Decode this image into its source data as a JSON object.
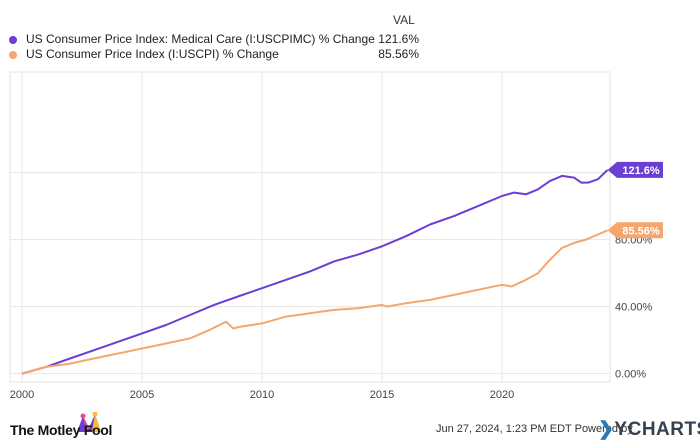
{
  "legend": {
    "header": "VAL",
    "items": [
      {
        "name": "US Consumer Price Index: Medical Care (I:USCPIMC) % Change",
        "value": "121.6%",
        "color": "#6b3fd4"
      },
      {
        "name": "US Consumer Price Index (I:USCPI) % Change",
        "value": "85.56%",
        "color": "#f5a66e"
      }
    ]
  },
  "footer": {
    "date": "Jun 27, 2024, 1:23 PM EDT Powered by",
    "brand": "YCHARTS",
    "logo_text": "The Motley Fool"
  },
  "chart_data": {
    "type": "line",
    "xlim": [
      1999.5,
      2024.5
    ],
    "ylim": [
      -5,
      180
    ],
    "x_ticks": [
      2000,
      2005,
      2010,
      2015,
      2020
    ],
    "x_tick_labels": [
      "2000",
      "2005",
      "2010",
      "2015",
      "2020"
    ],
    "y_ticks": [
      0,
      40,
      80,
      120
    ],
    "y_tick_labels": [
      "0.00%",
      "40.00%",
      "80.00%",
      "120.0%"
    ],
    "grid": true,
    "series": [
      {
        "name": "US Consumer Price Index: Medical Care (I:USCPIMC) % Change",
        "color": "#6b3fd4",
        "end_label": "121.6%",
        "x": [
          2000,
          2000.5,
          2001,
          2002,
          2003,
          2004,
          2005,
          2006,
          2007,
          2008,
          2009,
          2010,
          2011,
          2012,
          2013,
          2014,
          2015,
          2016,
          2017,
          2018,
          2019,
          2020,
          2020.5,
          2021,
          2021.5,
          2022,
          2022.5,
          2023,
          2023.3,
          2023.6,
          2024,
          2024.4
        ],
        "values": [
          0,
          2,
          4,
          9,
          14,
          19,
          24,
          29,
          35,
          41,
          46,
          51,
          56,
          61,
          67,
          71,
          76,
          82,
          89,
          94,
          100,
          106,
          108,
          107,
          110,
          115,
          118,
          117,
          114,
          114,
          116,
          121.6
        ]
      },
      {
        "name": "US Consumer Price Index (I:USCPI) % Change",
        "color": "#f5a66e",
        "end_label": "85.56%",
        "x": [
          2000,
          2001,
          2002,
          2003,
          2004,
          2005,
          2006,
          2007,
          2007.8,
          2008.5,
          2008.8,
          2009.1,
          2010,
          2011,
          2012,
          2013,
          2014,
          2015,
          2015.2,
          2016,
          2017,
          2018,
          2019,
          2020,
          2020.4,
          2021,
          2021.5,
          2022,
          2022.5,
          2023,
          2023.5,
          2024,
          2024.4
        ],
        "values": [
          0,
          4,
          6,
          9,
          12,
          15,
          18,
          21,
          26,
          31,
          27,
          28,
          30,
          34,
          36,
          38,
          39,
          41,
          40,
          42,
          44,
          47,
          50,
          53,
          52,
          56,
          60,
          68,
          75,
          78,
          80,
          83,
          85.56
        ]
      }
    ]
  }
}
